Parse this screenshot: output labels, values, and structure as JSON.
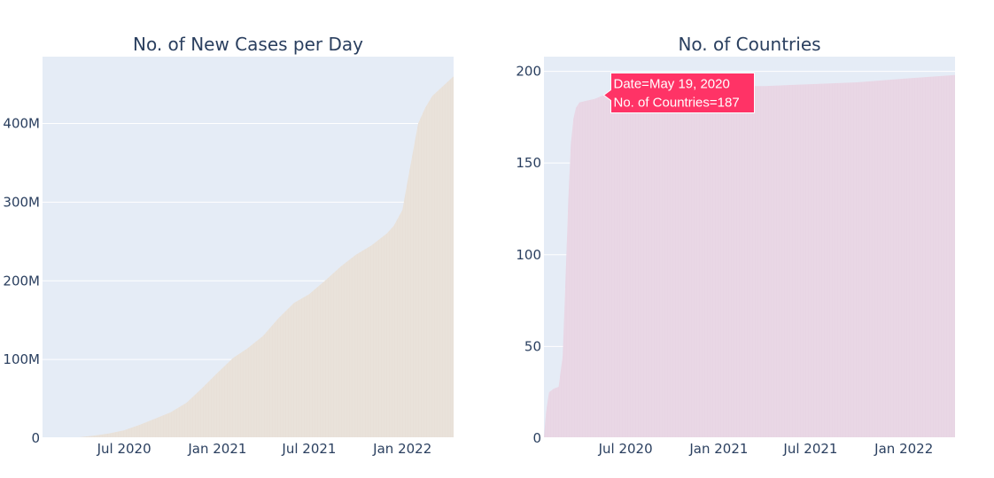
{
  "chart_data": [
    {
      "type": "area",
      "title": "No. of New Cases per Day",
      "xlabel": "",
      "ylabel": "",
      "x_ticks": [
        "Jul 2020",
        "Jan 2021",
        "Jul 2021",
        "Jan 2022"
      ],
      "y_ticks": [
        "0",
        "100M",
        "200M",
        "300M",
        "400M"
      ],
      "y_tick_values": [
        0,
        100000000,
        200000000,
        300000000,
        400000000
      ],
      "xlim": [
        "2020-01-22",
        "2022-04-12"
      ],
      "ylim": [
        0,
        485000000
      ],
      "grid": true,
      "fill_color": "#e8e0d8",
      "plot_bg": "#e5ecf6",
      "x": [
        "2020-01-22",
        "2020-04-01",
        "2020-05-01",
        "2020-06-01",
        "2020-07-01",
        "2020-08-01",
        "2020-09-01",
        "2020-10-01",
        "2020-11-01",
        "2020-12-01",
        "2021-01-01",
        "2021-02-01",
        "2021-03-01",
        "2021-04-01",
        "2021-05-01",
        "2021-06-01",
        "2021-07-01",
        "2021-08-01",
        "2021-09-01",
        "2021-10-01",
        "2021-11-01",
        "2021-12-01",
        "2021-12-15",
        "2022-01-01",
        "2022-01-15",
        "2022-02-01",
        "2022-02-15",
        "2022-03-01",
        "2022-04-12"
      ],
      "values": [
        0,
        1000000,
        3000000,
        6000000,
        10000000,
        17000000,
        25000000,
        33000000,
        45000000,
        63000000,
        83000000,
        102000000,
        114000000,
        130000000,
        152000000,
        172000000,
        183000000,
        200000000,
        218000000,
        233000000,
        245000000,
        260000000,
        270000000,
        290000000,
        340000000,
        400000000,
        420000000,
        435000000,
        460000000
      ]
    },
    {
      "type": "area",
      "title": "No. of Countries",
      "xlabel": "",
      "ylabel": "",
      "x_ticks": [
        "Jul 2020",
        "Jan 2021",
        "Jul 2021",
        "Jan 2022"
      ],
      "y_ticks": [
        "0",
        "50",
        "100",
        "150",
        "200"
      ],
      "y_tick_values": [
        0,
        50,
        100,
        150,
        200
      ],
      "xlim": [
        "2020-01-22",
        "2022-04-12"
      ],
      "ylim": [
        0,
        208
      ],
      "grid": true,
      "fill_color": "#e8d5e4",
      "plot_bg": "#e5ecf6",
      "x": [
        "2020-01-22",
        "2020-01-26",
        "2020-02-01",
        "2020-02-10",
        "2020-02-20",
        "2020-02-28",
        "2020-03-05",
        "2020-03-10",
        "2020-03-15",
        "2020-03-20",
        "2020-03-25",
        "2020-04-01",
        "2020-04-15",
        "2020-05-01",
        "2020-05-19",
        "2020-07-01",
        "2020-10-01",
        "2021-01-01",
        "2021-04-01",
        "2021-07-01",
        "2021-10-01",
        "2022-01-01",
        "2022-04-12"
      ],
      "values": [
        0,
        14,
        25,
        27,
        28,
        45,
        90,
        130,
        160,
        174,
        180,
        183,
        184,
        185,
        187,
        190,
        191,
        192,
        192,
        193,
        194,
        196,
        198
      ],
      "tooltip": {
        "line1": "Date=May 19, 2020",
        "line2": "No. of Countries=187",
        "date": "2020-05-19",
        "value": 187,
        "color": "#ff3366"
      }
    }
  ]
}
